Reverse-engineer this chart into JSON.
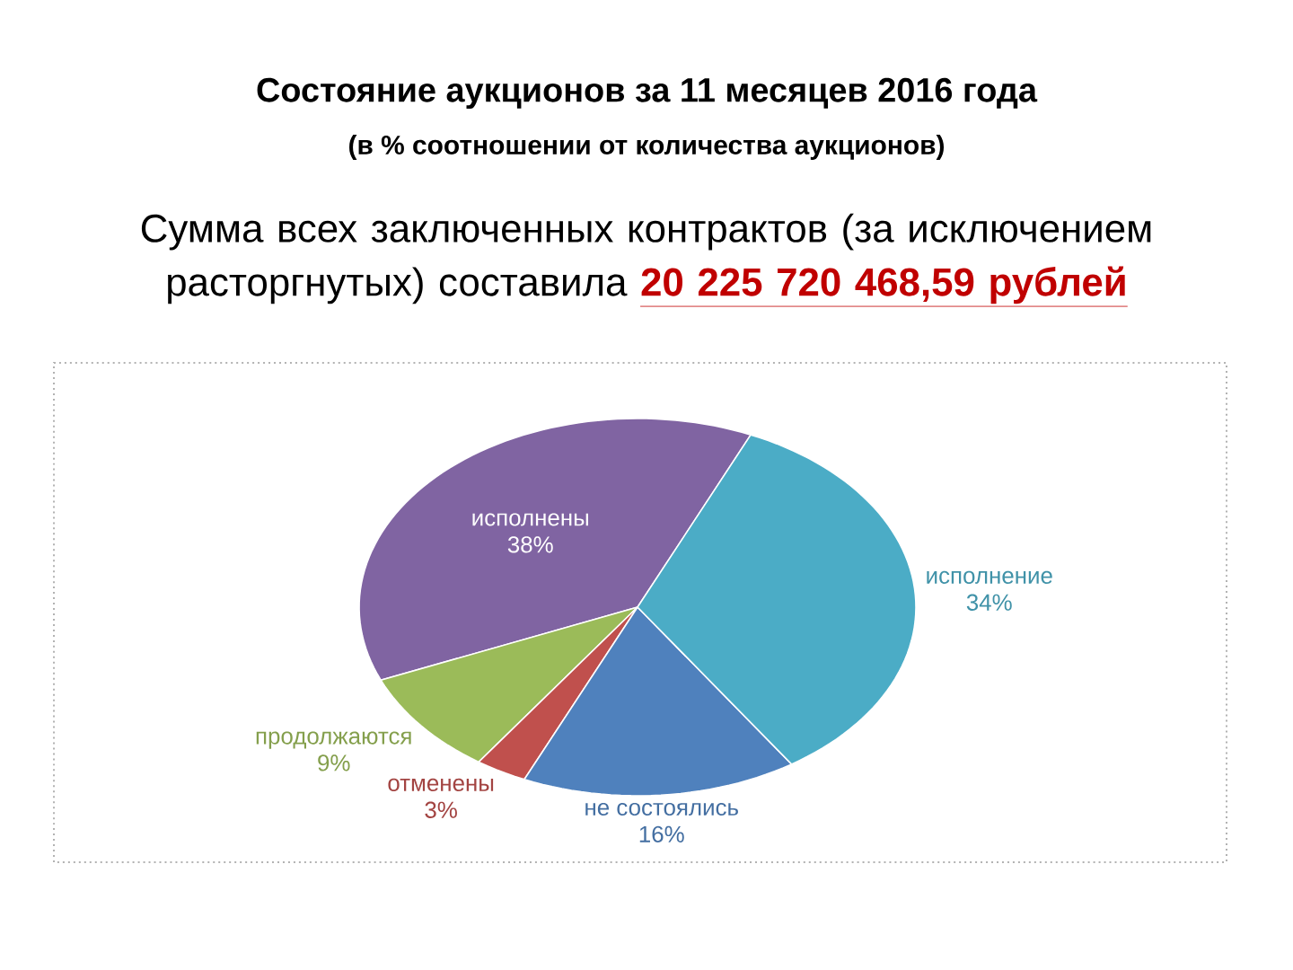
{
  "chart_data": {
    "type": "pie",
    "title": "Состояние аукционов за 11 месяцев 2016 года",
    "subtitle": "(в % соотношении от количества аукционов)",
    "annotations": [
      "Сумма всех заключенных контрактов (за исключением расторгнутых) составила",
      "20 225 720 468,59   рублей"
    ],
    "categories": [
      "исполнены",
      "продолжаются",
      "отменены",
      "не состоялись",
      "исполнение"
    ],
    "values": [
      38,
      9,
      3,
      16,
      34
    ],
    "value_labels": [
      "38%",
      "9%",
      "3%",
      "16%",
      "34%"
    ],
    "colors": [
      "#8064a2",
      "#9bbb59",
      "#c0504d",
      "#4f81bd",
      "#4bacc6"
    ]
  }
}
